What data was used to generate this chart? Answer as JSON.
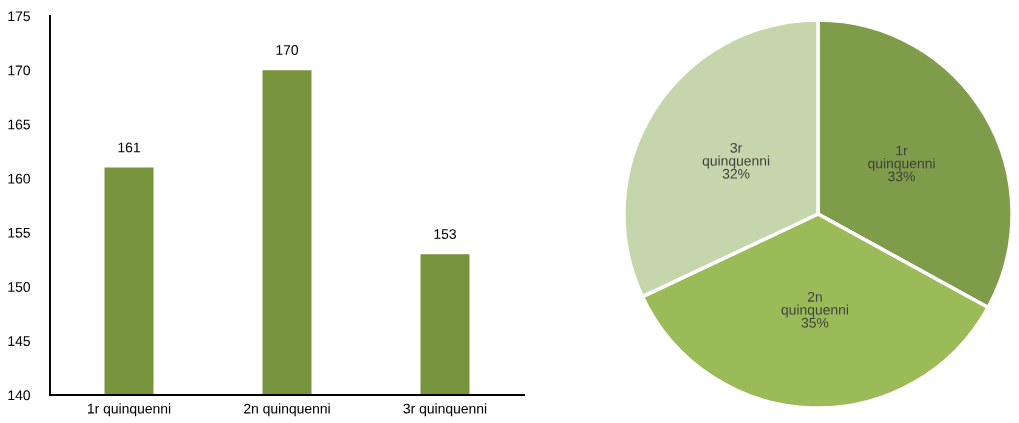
{
  "chart_data": [
    {
      "type": "bar",
      "categories": [
        "1r quinquenni",
        "2n quinquenni",
        "3r quinquenni"
      ],
      "values": [
        161,
        170,
        153
      ],
      "color": "#77933c",
      "ylim": [
        140,
        175
      ],
      "yticks": [
        140,
        145,
        150,
        155,
        160,
        165,
        170,
        175
      ],
      "data_labels": true
    },
    {
      "type": "pie",
      "categories": [
        "1r quinquenni",
        "2n quinquenni",
        "3r quinquenni"
      ],
      "values": [
        33,
        35,
        32
      ],
      "colors": [
        "#7f9c4a",
        "#9bbb59",
        "#c5d6ac"
      ],
      "value_labels": [
        "33%",
        "35%",
        "32%"
      ]
    }
  ]
}
